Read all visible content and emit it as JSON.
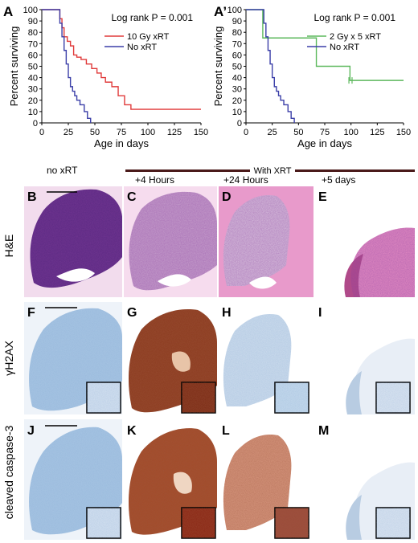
{
  "chart_data": [
    {
      "panel": "A",
      "type": "line",
      "xlabel": "Age in days",
      "ylabel": "Percent surviving",
      "xlim": [
        0,
        150
      ],
      "ylim": [
        0,
        100
      ],
      "xticks": [
        "0",
        "25",
        "50",
        "75",
        "100",
        "125",
        "150"
      ],
      "yticks": [
        "0",
        "10",
        "20",
        "30",
        "40",
        "50",
        "60",
        "70",
        "80",
        "90",
        "100"
      ],
      "annotation": "Log rank P = 0.001",
      "legend": "top-right",
      "series": [
        {
          "name": "10 Gy xRT",
          "color": "#e03a3a",
          "x": [
            0,
            15,
            17,
            19,
            21,
            24,
            27,
            30,
            33,
            37,
            42,
            47,
            52,
            56,
            60,
            66,
            72,
            78,
            84,
            150
          ],
          "y": [
            100,
            100,
            92,
            84,
            76,
            72,
            68,
            60,
            58,
            56,
            52,
            48,
            44,
            40,
            36,
            32,
            24,
            16,
            12,
            12
          ]
        },
        {
          "name": "No xRT",
          "color": "#3b3fa8",
          "x": [
            0,
            15,
            17,
            19,
            21,
            23,
            25,
            27,
            29,
            31,
            33,
            36,
            40,
            43,
            46
          ],
          "y": [
            100,
            100,
            88,
            76,
            64,
            52,
            40,
            32,
            28,
            24,
            20,
            16,
            10,
            4,
            0
          ]
        }
      ]
    },
    {
      "panel": "A'",
      "type": "line",
      "xlabel": "Age in days",
      "ylabel": "Percent surviving",
      "xlim": [
        0,
        150
      ],
      "ylim": [
        0,
        100
      ],
      "xticks": [
        "0",
        "25",
        "50",
        "75",
        "100",
        "125",
        "150"
      ],
      "yticks": [
        "0",
        "10",
        "20",
        "30",
        "40",
        "50",
        "60",
        "70",
        "80",
        "90",
        "100"
      ],
      "annotation": "Log rank P = 0.001",
      "legend": "top-right",
      "series": [
        {
          "name": "2 Gy x 5 xRT",
          "color": "#5cb85c",
          "x": [
            0,
            13,
            16,
            64,
            67,
            96,
            99,
            150
          ],
          "y": [
            100,
            100,
            75,
            75,
            50,
            50,
            37.5,
            37.5
          ]
        },
        {
          "name": "No xRT",
          "color": "#3b3fa8",
          "x": [
            0,
            15,
            17,
            19,
            21,
            23,
            25,
            27,
            29,
            31,
            33,
            36,
            40,
            43,
            46
          ],
          "y": [
            100,
            100,
            88,
            76,
            64,
            52,
            40,
            32,
            28,
            24,
            20,
            16,
            10,
            4,
            0
          ]
        }
      ]
    }
  ],
  "panel_labels": {
    "a": "A",
    "a2": "A’",
    "b": "B",
    "c": "C",
    "d": "D",
    "e": "E",
    "f": "F",
    "g": "G",
    "h": "H",
    "i": "I",
    "j": "J",
    "k": "K",
    "l": "L",
    "m": "M"
  },
  "columns": {
    "no_xrt": "no xRT",
    "with_xrt": "With XRT",
    "t4h": "+4 Hours",
    "t24h": "+24 Hours",
    "t5d": "+5 days"
  },
  "rows": {
    "he": "H&E",
    "gh2ax": "γH2AX",
    "caspase": "cleaved caspase-3"
  },
  "colors": {
    "he_dark": "#5a2a82",
    "he_light": "#d46aa6",
    "ihc_blue": "#9fbfe0",
    "dab_brown": "#8b3a1e",
    "bar": "#4a1a1a"
  }
}
